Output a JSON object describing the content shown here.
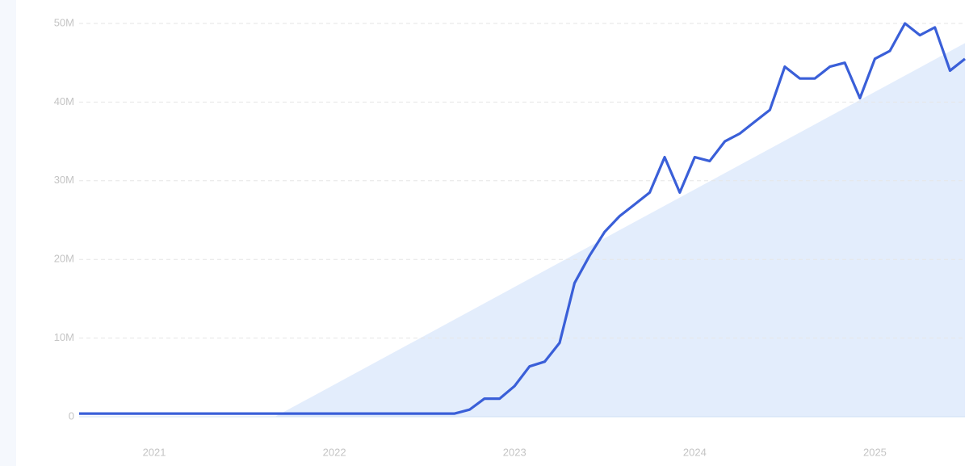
{
  "chart_data": {
    "type": "line",
    "x": [
      2020.583,
      2020.667,
      2020.75,
      2020.833,
      2020.917,
      2021.0,
      2021.083,
      2021.167,
      2021.25,
      2021.333,
      2021.417,
      2021.5,
      2021.583,
      2021.667,
      2021.75,
      2021.833,
      2021.917,
      2022.0,
      2022.083,
      2022.167,
      2022.25,
      2022.333,
      2022.417,
      2022.5,
      2022.583,
      2022.667,
      2022.75,
      2022.833,
      2022.917,
      2023.0,
      2023.083,
      2023.167,
      2023.25,
      2023.333,
      2023.417,
      2023.5,
      2023.583,
      2023.667,
      2023.75,
      2023.833,
      2023.917,
      2024.0,
      2024.083,
      2024.167,
      2024.25,
      2024.333,
      2024.417,
      2024.5,
      2024.583,
      2024.667,
      2024.75,
      2024.833,
      2024.917,
      2025.0,
      2025.083,
      2025.167,
      2025.25,
      2025.333,
      2025.417,
      2025.5
    ],
    "values": [
      400000,
      400000,
      400000,
      400000,
      400000,
      400000,
      400000,
      400000,
      400000,
      400000,
      400000,
      400000,
      400000,
      400000,
      400000,
      400000,
      400000,
      400000,
      400000,
      400000,
      400000,
      400000,
      400000,
      400000,
      400000,
      400000,
      900000,
      2300000,
      2300000,
      3900000,
      6400000,
      7000000,
      9400000,
      17000000,
      20500000,
      23500000,
      25500000,
      27000000,
      28500000,
      33000000,
      28500000,
      33000000,
      32500000,
      35000000,
      36000000,
      37500000,
      39000000,
      44500000,
      43000000,
      43000000,
      44500000,
      45000000,
      40500000,
      45500000,
      46500000,
      50000000,
      48500000,
      49500000,
      44000000,
      45500000
    ],
    "color": "#3a5fd8",
    "trend": {
      "x": [
        2021.67,
        2025.5
      ],
      "values": [
        0,
        47500000
      ],
      "color": "#dce9fb"
    },
    "xlim": [
      2020.583,
      2025.5
    ],
    "xticks": [
      2021,
      2022,
      2023,
      2024,
      2025
    ],
    "ylim": [
      0,
      50000000
    ],
    "yticks": [
      {
        "value": 0,
        "label": "0"
      },
      {
        "value": 10000000,
        "label": "10M"
      },
      {
        "value": 20000000,
        "label": "20M"
      },
      {
        "value": 30000000,
        "label": "30M"
      },
      {
        "value": 40000000,
        "label": "40M"
      },
      {
        "value": 50000000,
        "label": "50M"
      }
    ],
    "grid": true
  }
}
